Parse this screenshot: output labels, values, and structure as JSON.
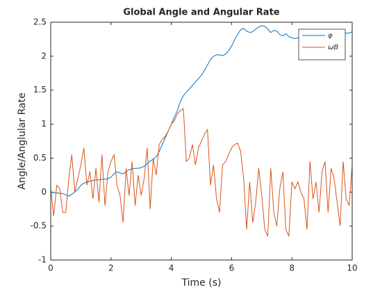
{
  "chart_data": {
    "type": "line",
    "title": "Global Angle and Angular Rate",
    "x_label": "Time (s)",
    "y_label": "Angle/Anglular Rate",
    "x": [
      0,
      0.1,
      0.2,
      0.3,
      0.4,
      0.5,
      0.6,
      0.7,
      0.8,
      0.9,
      1,
      1.1,
      1.2,
      1.3,
      1.4,
      1.5,
      1.6,
      1.7,
      1.8,
      1.9,
      2,
      2.1,
      2.2,
      2.3,
      2.4,
      2.5,
      2.6,
      2.7,
      2.8,
      2.9,
      3,
      3.1,
      3.2,
      3.3,
      3.4,
      3.5,
      3.6,
      3.7,
      3.8,
      3.9,
      4,
      4.1,
      4.2,
      4.3,
      4.4,
      4.5,
      4.6,
      4.7,
      4.8,
      4.9,
      5,
      5.1,
      5.2,
      5.3,
      5.4,
      5.5,
      5.6,
      5.7,
      5.8,
      5.9,
      6,
      6.1,
      6.2,
      6.3,
      6.4,
      6.5,
      6.6,
      6.7,
      6.8,
      6.9,
      7,
      7.1,
      7.2,
      7.3,
      7.4,
      7.5,
      7.6,
      7.7,
      7.8,
      7.9,
      8,
      8.1,
      8.2,
      8.3,
      8.4,
      8.5,
      8.6,
      8.7,
      8.8,
      8.9,
      9,
      9.1,
      9.2,
      9.3,
      9.4,
      9.5,
      9.6,
      9.7,
      9.8,
      9.9,
      10
    ],
    "series": [
      {
        "name": "φ",
        "color": "#0072bd",
        "values": [
          0,
          -0.01,
          -0.01,
          -0.02,
          -0.02,
          -0.04,
          -0.06,
          -0.03,
          0,
          0.04,
          0.1,
          0.13,
          0.15,
          0.16,
          0.17,
          0.18,
          0.18,
          0.19,
          0.19,
          0.2,
          0.22,
          0.27,
          0.3,
          0.28,
          0.27,
          0.3,
          0.33,
          0.34,
          0.35,
          0.35,
          0.36,
          0.38,
          0.42,
          0.46,
          0.48,
          0.52,
          0.6,
          0.7,
          0.8,
          0.9,
          1,
          1.1,
          1.2,
          1.33,
          1.42,
          1.47,
          1.52,
          1.57,
          1.62,
          1.67,
          1.72,
          1.79,
          1.87,
          1.95,
          2,
          2.02,
          2.02,
          2.01,
          2.03,
          2.08,
          2.15,
          2.24,
          2.32,
          2.39,
          2.41,
          2.37,
          2.35,
          2.36,
          2.4,
          2.43,
          2.45,
          2.44,
          2.4,
          2.35,
          2.38,
          2.37,
          2.32,
          2.3,
          2.33,
          2.29,
          2.27,
          2.26,
          2.27,
          2.25,
          2.24,
          2.24,
          2.25,
          2.26,
          2.27,
          2.28,
          2.3,
          2.32,
          2.33,
          2.31,
          2.32,
          2.33,
          2.34,
          2.33,
          2.34,
          2.34,
          2.36
        ]
      },
      {
        "name": "ωB",
        "color": "#d95319",
        "values": [
          0.05,
          -0.35,
          0.1,
          0.05,
          -0.3,
          -0.3,
          0.2,
          0.55,
          0,
          0.2,
          0.4,
          0.65,
          0.1,
          0.3,
          -0.1,
          0.35,
          -0.15,
          0.55,
          -0.2,
          0.3,
          0.45,
          0.55,
          0.1,
          -0.05,
          -0.45,
          0.35,
          -0.05,
          0.45,
          -0.2,
          0.25,
          -0.05,
          0.2,
          0.65,
          -0.25,
          0.5,
          0.25,
          0.7,
          0.78,
          0.82,
          0.9,
          1,
          1.05,
          1.15,
          1.2,
          1.23,
          0.45,
          0.5,
          0.7,
          0.4,
          0.65,
          0.75,
          0.85,
          0.92,
          0.1,
          0.4,
          -0.1,
          -0.3,
          0.4,
          0.45,
          0.55,
          0.65,
          0.7,
          0.72,
          0.6,
          0.2,
          -0.55,
          0.15,
          -0.45,
          -0.15,
          0.35,
          -0.05,
          -0.55,
          -0.65,
          0.35,
          -0.3,
          -0.5,
          0.05,
          0.3,
          -0.55,
          -0.65,
          0.15,
          0.05,
          0.15,
          0,
          -0.1,
          -0.55,
          0.45,
          -0.1,
          0.15,
          -0.3,
          0.3,
          0.45,
          -0.3,
          0.35,
          0.2,
          -0.15,
          -0.5,
          0.45,
          -0.1,
          -0.2,
          0.4
        ]
      }
    ],
    "xlim": [
      0,
      10
    ],
    "xticks": [
      0,
      2,
      4,
      6,
      8,
      10
    ],
    "ylim": [
      -1,
      2.5
    ],
    "yticks": [
      -1,
      -0.5,
      0,
      0.5,
      1,
      1.5,
      2,
      2.5
    ],
    "legend": "top-right"
  }
}
